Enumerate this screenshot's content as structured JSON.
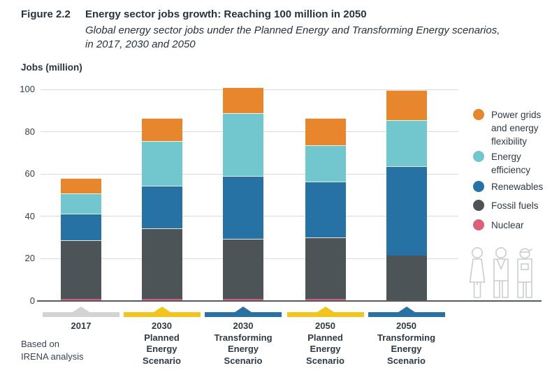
{
  "figure": {
    "label": "Figure 2.2",
    "title": "Energy sector jobs growth: Reaching 100 million in 2050",
    "subtitle_line1": "Global energy sector jobs under the Planned Energy and Transforming Energy scenarios,",
    "subtitle_line2": "in 2017, 2030 and 2050"
  },
  "axis": {
    "y_label": "Jobs (million)",
    "y_ticks": [
      0,
      20,
      40,
      60,
      80,
      100
    ]
  },
  "source": {
    "line1": "Based on",
    "line2": "IRENA analysis"
  },
  "chart_data": {
    "type": "bar",
    "stacked": true,
    "title": "Energy sector jobs growth: Reaching 100 million in 2050",
    "ylabel": "Jobs (million)",
    "ylim": [
      0,
      100
    ],
    "grid": true,
    "legend_position": "right",
    "categories": [
      {
        "lines": [
          "2017"
        ],
        "ribbon_color": "#D3D3D3"
      },
      {
        "lines": [
          "2030",
          "Planned",
          "Energy",
          "Scenario"
        ],
        "ribbon_color": "#F2C41E"
      },
      {
        "lines": [
          "2030",
          "Transforming",
          "Energy",
          "Scenario"
        ],
        "ribbon_color": "#2B72A4"
      },
      {
        "lines": [
          "2050",
          "Planned",
          "Energy",
          "Scenario"
        ],
        "ribbon_color": "#F2C41E"
      },
      {
        "lines": [
          "2050",
          "Transforming",
          "Energy",
          "Scenario"
        ],
        "ribbon_color": "#2B72A4"
      }
    ],
    "series": [
      {
        "name": "Nuclear",
        "color": "#CC6079",
        "values": [
          0.8,
          0.8,
          0.8,
          0.8,
          0
        ]
      },
      {
        "name": "Fossil fuels",
        "color": "#4D5458",
        "values": [
          27.5,
          33.1,
          28.4,
          28.9,
          21.1
        ]
      },
      {
        "name": "Renewables",
        "color": "#2772A4",
        "values": [
          12.8,
          20.2,
          29.7,
          26.3,
          42.2
        ]
      },
      {
        "name": "Energy efficiency",
        "color": "#72C7CE",
        "values": [
          9.3,
          21.2,
          29.5,
          17.3,
          21.7
        ]
      },
      {
        "name": "Power grids and energy flexibility",
        "color": "#E8862D",
        "values": [
          7.4,
          11.0,
          12.1,
          12.8,
          14.4
        ]
      }
    ],
    "totals": [
      57.8,
      86.3,
      100.5,
      86.1,
      99.4
    ]
  },
  "legend": {
    "items": [
      {
        "lines": [
          "Power grids",
          "and energy",
          "flexibility"
        ],
        "color": "#E8862D"
      },
      {
        "lines": [
          "Energy",
          "efficiency"
        ],
        "color": "#72C7CE"
      },
      {
        "lines": [
          "Renewables"
        ],
        "color": "#2772A4"
      },
      {
        "lines": [
          "Fossil fuels"
        ],
        "color": "#4D5458"
      },
      {
        "lines": [
          "Nuclear"
        ],
        "color": "#DB6078"
      }
    ]
  },
  "colors": {
    "gridline": "#D9DADB",
    "axis_line": "#595A5C",
    "text_dark": "#26333E",
    "people_outline": "#C9CDCF"
  }
}
